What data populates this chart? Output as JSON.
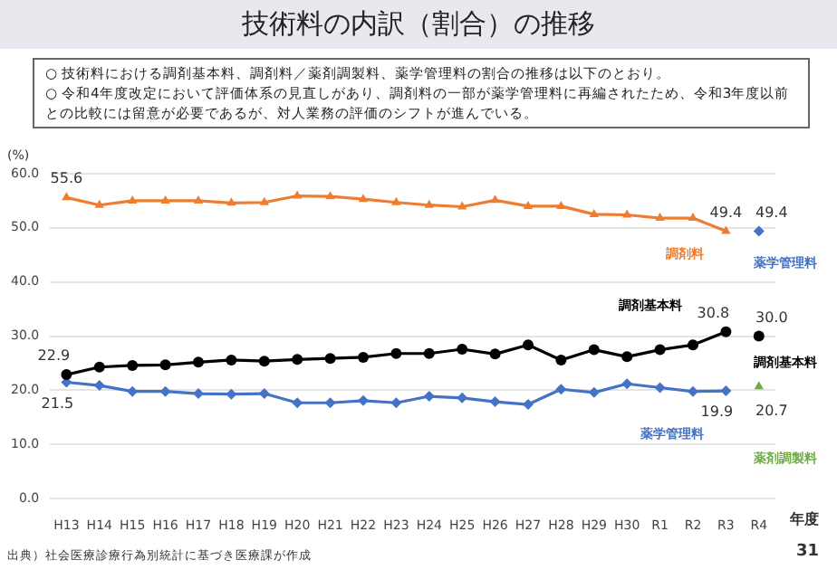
{
  "chart_data": {
    "type": "line",
    "title": "技術料の内訳（割合）の推移",
    "subtitle": "○ 技術料における調剤基本料、調剤料／薬剤調製料、薬学管理料の割合の推移は以下のとおり。\n○ 令和4年度改定において評価体系の見直しがあり、調剤料の一部が薬学管理料に再編されたため、令和3年度以前との比較には留意が必要であるが、対人業務の評価のシフトが進んでいる。",
    "ylabel": "(%)",
    "xlabel": "年度",
    "categories": [
      "H13",
      "H14",
      "H15",
      "H16",
      "H17",
      "H18",
      "H19",
      "H20",
      "H21",
      "H22",
      "H23",
      "H24",
      "H25",
      "H26",
      "H27",
      "H28",
      "H29",
      "H30",
      "R1",
      "R2",
      "R3",
      "R4"
    ],
    "ylim": [
      0,
      60
    ],
    "yticks": [
      {
        "value": 0,
        "label": "0.0"
      },
      {
        "value": 10,
        "label": "10.0"
      },
      {
        "value": 20,
        "label": "20.0"
      },
      {
        "value": 30,
        "label": "30.0"
      },
      {
        "value": 40,
        "label": "40.0"
      },
      {
        "value": 50,
        "label": "50.0"
      },
      {
        "value": 60,
        "label": "60.0"
      }
    ],
    "grid": "y",
    "legend": false,
    "series": [
      {
        "name": "調剤料",
        "color": "#ed7d31",
        "marker": "triangle",
        "values": [
          55.6,
          54.2,
          55.0,
          55.0,
          55.0,
          54.6,
          54.7,
          55.9,
          55.8,
          55.3,
          54.7,
          54.2,
          53.9,
          55.1,
          54.0,
          54.0,
          52.5,
          52.4,
          51.8,
          51.8,
          49.4,
          null
        ],
        "value_labels": [
          "55.6",
          null,
          null,
          null,
          null,
          null,
          null,
          null,
          null,
          null,
          null,
          null,
          null,
          null,
          null,
          null,
          null,
          null,
          null,
          null,
          "49.4",
          null
        ]
      },
      {
        "name": "調剤基本料",
        "color": "#000000",
        "marker": "circle",
        "values": [
          22.9,
          24.3,
          24.6,
          24.7,
          25.2,
          25.6,
          25.4,
          25.7,
          25.9,
          26.1,
          26.8,
          26.8,
          27.6,
          26.7,
          28.4,
          25.6,
          27.5,
          26.2,
          27.5,
          28.4,
          30.8,
          null
        ],
        "value_labels": [
          "22.9",
          null,
          null,
          null,
          null,
          null,
          null,
          null,
          null,
          null,
          null,
          null,
          null,
          null,
          null,
          null,
          null,
          null,
          null,
          null,
          "30.8",
          null
        ]
      },
      {
        "name": "薬学管理料",
        "color": "#4472c4",
        "marker": "diamond",
        "values": [
          21.5,
          20.9,
          19.8,
          19.8,
          19.4,
          19.3,
          19.4,
          17.7,
          17.7,
          18.1,
          17.7,
          18.9,
          18.6,
          17.9,
          17.4,
          20.2,
          19.6,
          21.2,
          20.5,
          19.8,
          19.9,
          null
        ],
        "value_labels": [
          "21.5",
          null,
          null,
          null,
          null,
          null,
          null,
          null,
          null,
          null,
          null,
          null,
          null,
          null,
          null,
          null,
          null,
          null,
          null,
          null,
          "19.9",
          null
        ]
      },
      {
        "name": "薬学管理料",
        "color": "#4472c4",
        "marker": "diamond",
        "values": [
          null,
          null,
          null,
          null,
          null,
          null,
          null,
          null,
          null,
          null,
          null,
          null,
          null,
          null,
          null,
          null,
          null,
          null,
          null,
          null,
          null,
          49.4
        ],
        "value_labels": [
          null,
          null,
          null,
          null,
          null,
          null,
          null,
          null,
          null,
          null,
          null,
          null,
          null,
          null,
          null,
          null,
          null,
          null,
          null,
          null,
          null,
          "49.4"
        ]
      },
      {
        "name": "調剤基本料",
        "color": "#000000",
        "marker": "circle",
        "values": [
          null,
          null,
          null,
          null,
          null,
          null,
          null,
          null,
          null,
          null,
          null,
          null,
          null,
          null,
          null,
          null,
          null,
          null,
          null,
          null,
          null,
          30.0
        ],
        "value_labels": [
          null,
          null,
          null,
          null,
          null,
          null,
          null,
          null,
          null,
          null,
          null,
          null,
          null,
          null,
          null,
          null,
          null,
          null,
          null,
          null,
          null,
          "30.0"
        ]
      },
      {
        "name": "薬剤調製料",
        "color": "#70ad47",
        "marker": "triangle",
        "values": [
          null,
          null,
          null,
          null,
          null,
          null,
          null,
          null,
          null,
          null,
          null,
          null,
          null,
          null,
          null,
          null,
          null,
          null,
          null,
          null,
          null,
          20.7
        ],
        "value_labels": [
          null,
          null,
          null,
          null,
          null,
          null,
          null,
          null,
          null,
          null,
          null,
          null,
          null,
          null,
          null,
          null,
          null,
          null,
          null,
          null,
          null,
          "20.7"
        ]
      }
    ],
    "annotations": [
      "出典）社会医療診療行為別統計に基づき医療課が作成",
      "31"
    ]
  }
}
